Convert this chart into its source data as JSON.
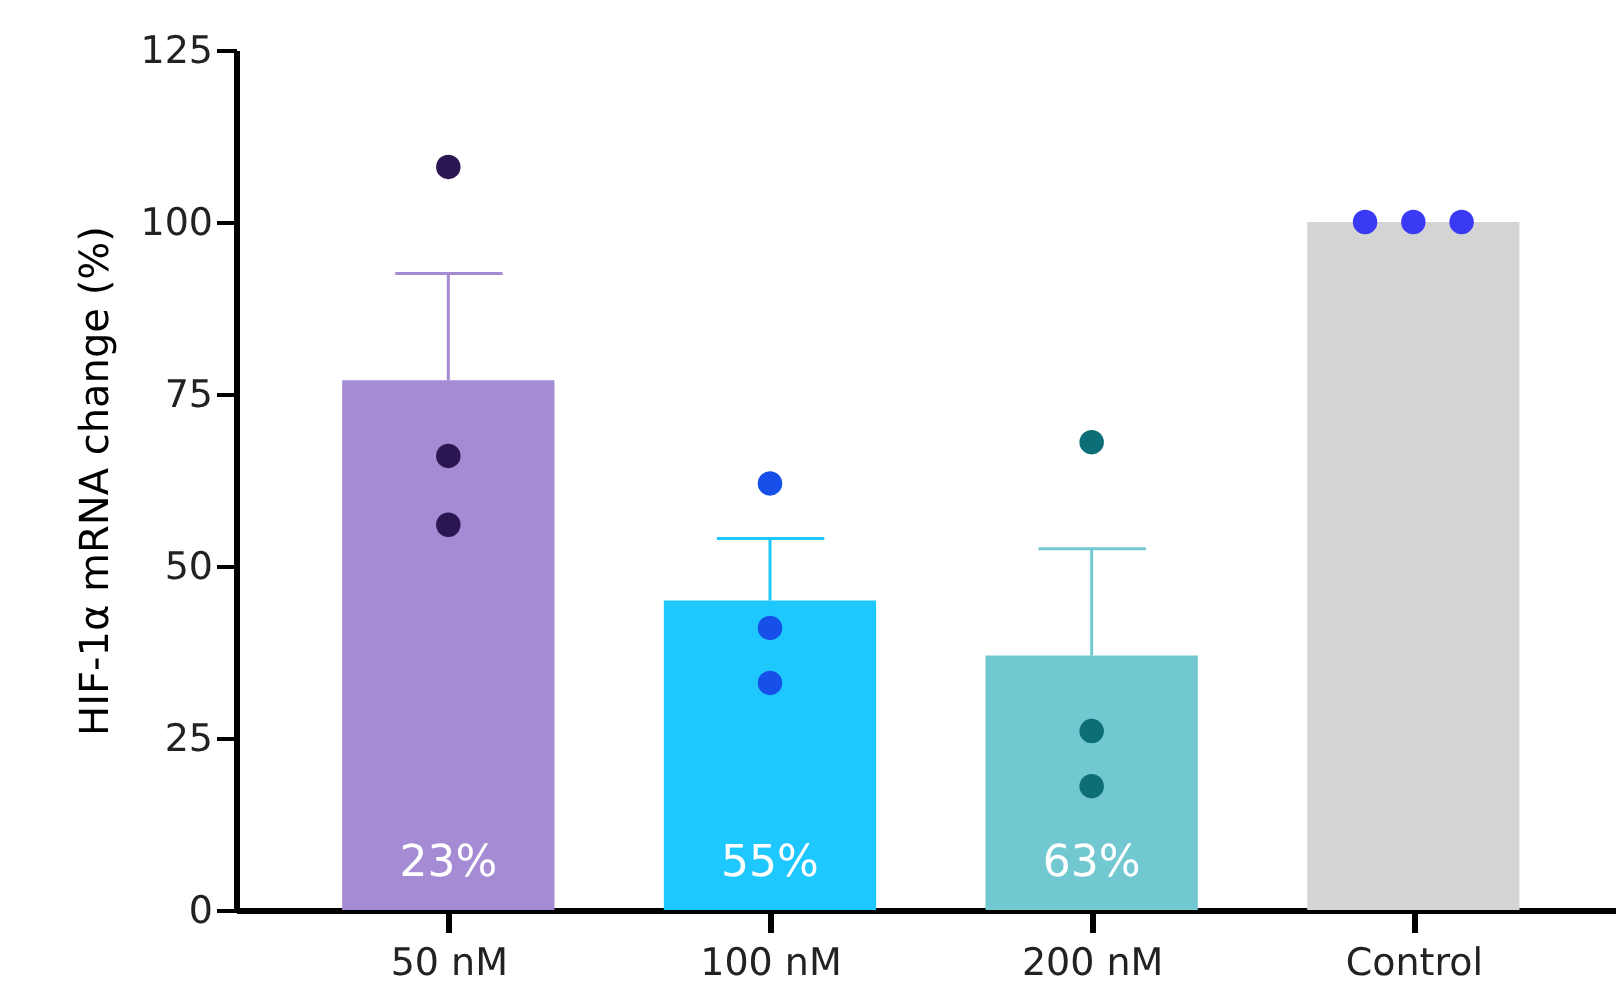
{
  "chart_data": {
    "type": "bar",
    "ylabel": "HIF-1α mRNA change (%)",
    "categories": [
      "50 nM",
      "100 nM",
      "200 nM",
      "Control"
    ],
    "ylim": [
      0,
      125
    ],
    "yticks": [
      0,
      25,
      50,
      75,
      100,
      125
    ],
    "grid": false,
    "marker": "circle",
    "annotations": [
      "23%",
      "55%",
      "63%"
    ],
    "series": [
      {
        "type": "bar",
        "colors": [
          "#a58bd3",
          "#1ec8fe",
          "#72c8d0",
          "#d4d4d4"
        ],
        "values": [
          77,
          45,
          37,
          100
        ],
        "errors": [
          [
            77,
            92.5
          ],
          [
            45,
            54
          ],
          [
            37,
            52.5
          ],
          null
        ]
      },
      {
        "type": "scatter",
        "color": "#2a1650",
        "x": [
          "50 nM",
          "50 nM",
          "50 nM"
        ],
        "values": [
          108,
          66,
          56
        ]
      },
      {
        "type": "scatter",
        "color": "#1650e8",
        "x": [
          "100 nM",
          "100 nM",
          "100 nM"
        ],
        "values": [
          62,
          41,
          33
        ]
      },
      {
        "type": "scatter",
        "color": "#0e6e78",
        "x": [
          "200 nM",
          "200 nM",
          "200 nM"
        ],
        "values": [
          68,
          26,
          18
        ]
      },
      {
        "type": "scatter",
        "color": "#3a3af5",
        "x": [
          "Control",
          "Control",
          "Control"
        ],
        "values": [
          100,
          100,
          100
        ]
      }
    ]
  }
}
